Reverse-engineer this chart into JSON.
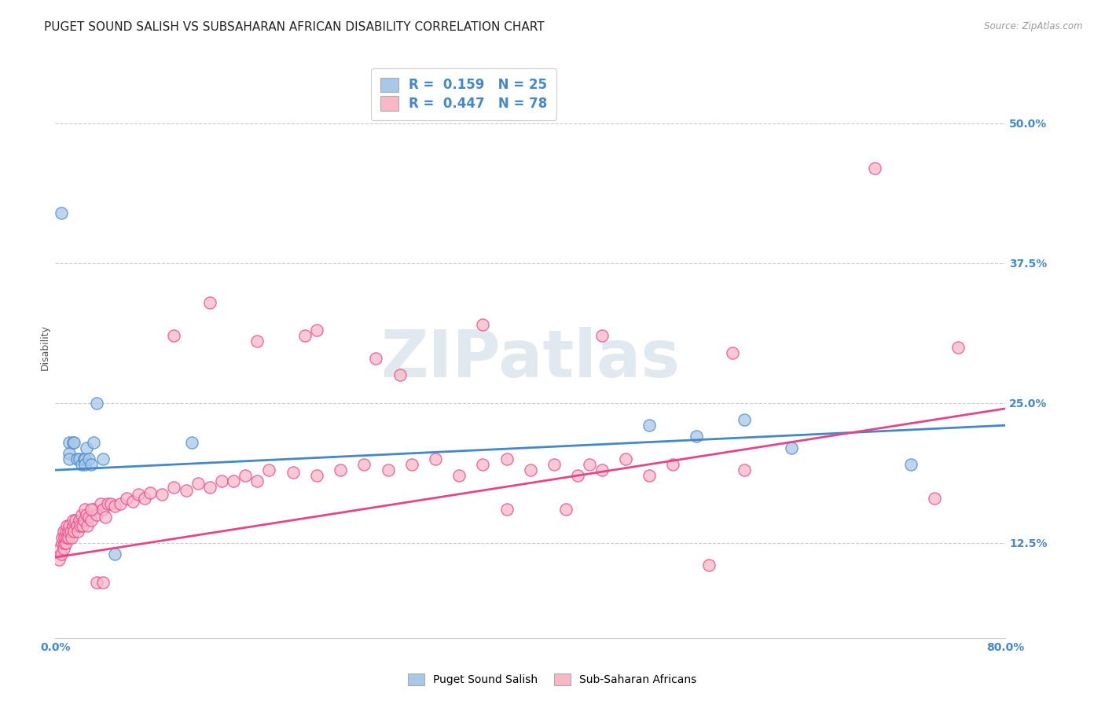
{
  "title": "PUGET SOUND SALISH VS SUBSAHARAN AFRICAN DISABILITY CORRELATION CHART",
  "source": "Source: ZipAtlas.com",
  "ylabel": "Disability",
  "xlim": [
    0.0,
    0.8
  ],
  "ylim": [
    0.04,
    0.56
  ],
  "yticks": [
    0.125,
    0.25,
    0.375,
    0.5
  ],
  "yticklabels": [
    "12.5%",
    "25.0%",
    "37.5%",
    "50.0%"
  ],
  "watermark": "ZIPatlas",
  "blue_color": "#a8c8e8",
  "pink_color": "#f8b8c8",
  "line_blue": "#4488cc",
  "line_pink": "#e84488",
  "blue_scatter": [
    [
      0.005,
      0.42
    ],
    [
      0.012,
      0.215
    ],
    [
      0.012,
      0.205
    ],
    [
      0.012,
      0.2
    ],
    [
      0.015,
      0.215
    ],
    [
      0.016,
      0.215
    ],
    [
      0.018,
      0.2
    ],
    [
      0.02,
      0.2
    ],
    [
      0.022,
      0.195
    ],
    [
      0.024,
      0.2
    ],
    [
      0.025,
      0.2
    ],
    [
      0.025,
      0.195
    ],
    [
      0.026,
      0.21
    ],
    [
      0.028,
      0.2
    ],
    [
      0.03,
      0.195
    ],
    [
      0.032,
      0.215
    ],
    [
      0.035,
      0.25
    ],
    [
      0.04,
      0.2
    ],
    [
      0.05,
      0.115
    ],
    [
      0.115,
      0.215
    ],
    [
      0.5,
      0.23
    ],
    [
      0.54,
      0.22
    ],
    [
      0.58,
      0.235
    ],
    [
      0.62,
      0.21
    ],
    [
      0.72,
      0.195
    ]
  ],
  "pink_scatter": [
    [
      0.003,
      0.11
    ],
    [
      0.004,
      0.12
    ],
    [
      0.005,
      0.115
    ],
    [
      0.006,
      0.125
    ],
    [
      0.006,
      0.13
    ],
    [
      0.007,
      0.12
    ],
    [
      0.007,
      0.135
    ],
    [
      0.008,
      0.125
    ],
    [
      0.008,
      0.13
    ],
    [
      0.009,
      0.125
    ],
    [
      0.009,
      0.135
    ],
    [
      0.01,
      0.13
    ],
    [
      0.01,
      0.14
    ],
    [
      0.011,
      0.13
    ],
    [
      0.011,
      0.135
    ],
    [
      0.012,
      0.14
    ],
    [
      0.013,
      0.135
    ],
    [
      0.014,
      0.13
    ],
    [
      0.015,
      0.14
    ],
    [
      0.015,
      0.145
    ],
    [
      0.016,
      0.135
    ],
    [
      0.017,
      0.145
    ],
    [
      0.018,
      0.14
    ],
    [
      0.019,
      0.135
    ],
    [
      0.02,
      0.145
    ],
    [
      0.021,
      0.14
    ],
    [
      0.022,
      0.15
    ],
    [
      0.023,
      0.14
    ],
    [
      0.024,
      0.145
    ],
    [
      0.025,
      0.155
    ],
    [
      0.026,
      0.15
    ],
    [
      0.027,
      0.14
    ],
    [
      0.028,
      0.148
    ],
    [
      0.03,
      0.145
    ],
    [
      0.032,
      0.155
    ],
    [
      0.035,
      0.15
    ],
    [
      0.038,
      0.16
    ],
    [
      0.04,
      0.155
    ],
    [
      0.042,
      0.148
    ],
    [
      0.044,
      0.16
    ],
    [
      0.047,
      0.16
    ],
    [
      0.05,
      0.158
    ],
    [
      0.055,
      0.16
    ],
    [
      0.06,
      0.165
    ],
    [
      0.065,
      0.162
    ],
    [
      0.07,
      0.168
    ],
    [
      0.075,
      0.165
    ],
    [
      0.08,
      0.17
    ],
    [
      0.09,
      0.168
    ],
    [
      0.1,
      0.175
    ],
    [
      0.11,
      0.172
    ],
    [
      0.12,
      0.178
    ],
    [
      0.13,
      0.175
    ],
    [
      0.14,
      0.18
    ],
    [
      0.15,
      0.18
    ],
    [
      0.16,
      0.185
    ],
    [
      0.17,
      0.18
    ],
    [
      0.18,
      0.19
    ],
    [
      0.2,
      0.188
    ],
    [
      0.22,
      0.185
    ],
    [
      0.24,
      0.19
    ],
    [
      0.26,
      0.195
    ],
    [
      0.28,
      0.19
    ],
    [
      0.3,
      0.195
    ],
    [
      0.32,
      0.2
    ],
    [
      0.34,
      0.185
    ],
    [
      0.36,
      0.195
    ],
    [
      0.38,
      0.2
    ],
    [
      0.4,
      0.19
    ],
    [
      0.42,
      0.195
    ],
    [
      0.44,
      0.185
    ],
    [
      0.46,
      0.19
    ],
    [
      0.48,
      0.2
    ],
    [
      0.5,
      0.185
    ],
    [
      0.52,
      0.195
    ],
    [
      0.55,
      0.105
    ],
    [
      0.58,
      0.19
    ],
    [
      0.1,
      0.31
    ],
    [
      0.17,
      0.305
    ],
    [
      0.22,
      0.315
    ],
    [
      0.27,
      0.29
    ],
    [
      0.29,
      0.275
    ],
    [
      0.36,
      0.32
    ],
    [
      0.46,
      0.31
    ],
    [
      0.57,
      0.295
    ],
    [
      0.69,
      0.46
    ],
    [
      0.13,
      0.34
    ],
    [
      0.21,
      0.31
    ],
    [
      0.76,
      0.3
    ],
    [
      0.74,
      0.165
    ],
    [
      0.03,
      0.155
    ],
    [
      0.035,
      0.09
    ],
    [
      0.04,
      0.09
    ],
    [
      0.38,
      0.155
    ],
    [
      0.43,
      0.155
    ],
    [
      0.45,
      0.195
    ]
  ],
  "blue_line_x": [
    0.0,
    0.8
  ],
  "blue_line_y": [
    0.19,
    0.23
  ],
  "pink_line_x": [
    0.0,
    0.8
  ],
  "pink_line_y": [
    0.112,
    0.245
  ],
  "grid_color": "#cccccc",
  "background_color": "#ffffff",
  "title_fontsize": 11,
  "axis_label_fontsize": 9,
  "tick_fontsize": 10,
  "legend_fontsize": 12
}
